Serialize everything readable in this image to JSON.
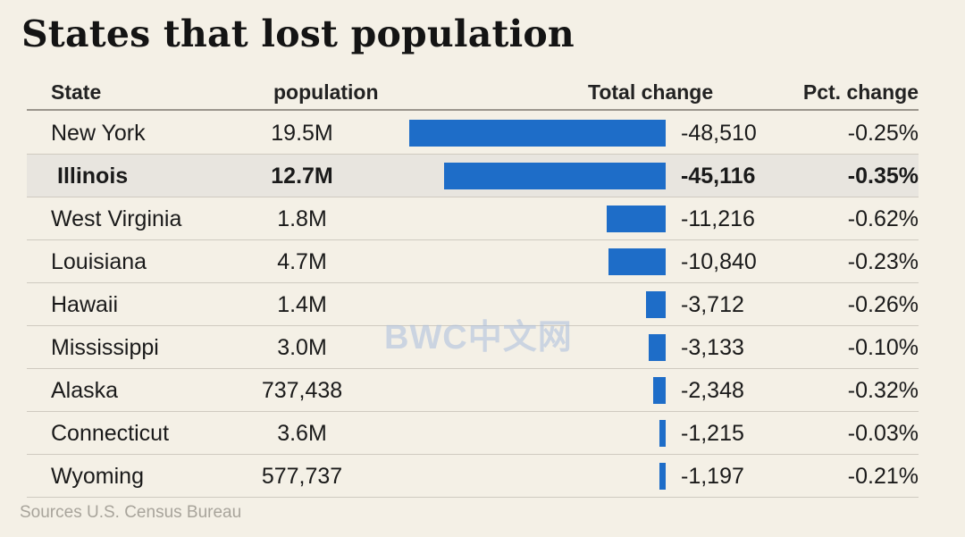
{
  "chart_data": {
    "type": "table",
    "title": "States that lost population",
    "columns": [
      "State",
      "population",
      "Total change",
      "Pct. change"
    ],
    "highlight": "Illinois",
    "bar_color": "#1e6dc8",
    "rows": [
      {
        "state": "New York",
        "population": "19.5M",
        "total_change_label": "-48,510",
        "total_change": -48510,
        "pct_change": "-0.25%"
      },
      {
        "state": "Illinois",
        "population": "12.7M",
        "total_change_label": "-45,116",
        "total_change": -45116,
        "pct_change": "-0.35%"
      },
      {
        "state": "West Virginia",
        "population": "1.8M",
        "total_change_label": "-11,216",
        "total_change": -11216,
        "pct_change": "-0.62%"
      },
      {
        "state": "Louisiana",
        "population": "4.7M",
        "total_change_label": "-10,840",
        "total_change": -10840,
        "pct_change": "-0.23%"
      },
      {
        "state": "Hawaii",
        "population": "1.4M",
        "total_change_label": "-3,712",
        "total_change": -3712,
        "pct_change": "-0.26%"
      },
      {
        "state": "Mississippi",
        "population": "3.0M",
        "total_change_label": "-3,133",
        "total_change": -3133,
        "pct_change": "-0.10%"
      },
      {
        "state": "Alaska",
        "population": "737,438",
        "total_change_label": "-2,348",
        "total_change": -2348,
        "pct_change": "-0.32%"
      },
      {
        "state": "Connecticut",
        "population": "3.6M",
        "total_change_label": "-1,215",
        "total_change": -1215,
        "pct_change": "-0.03%"
      },
      {
        "state": "Wyoming",
        "population": "577,737",
        "total_change_label": "-1,197",
        "total_change": -1197,
        "pct_change": "-0.21%"
      }
    ],
    "source": "Sources  U.S. Census Bureau"
  },
  "watermark": "BWC中文网"
}
